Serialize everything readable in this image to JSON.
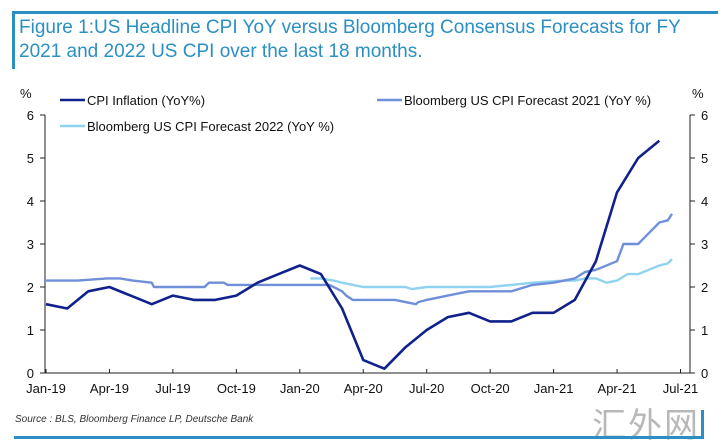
{
  "figure": {
    "title": "Figure 1:US Headline CPI YoY versus Bloomberg Consensus Forecasts for FY 2021 and 2022 US CPI over the last 18 months.",
    "source": "Source : BLS, Bloomberg Finance LP, Deutsche Bank",
    "watermark": "汇外网",
    "accent_color": "#2b8fc4"
  },
  "chart_data": {
    "type": "line",
    "title": "Figure 1:US Headline CPI YoY versus Bloomberg Consensus Forecasts for FY 2021 and 2022 US CPI over the last 18 months.",
    "xlabel": "",
    "ylabel_left": "%",
    "ylabel_right": "%",
    "ylim": [
      0,
      6
    ],
    "yticks": [
      "0",
      "1",
      "2",
      "3",
      "4",
      "5",
      "6"
    ],
    "xticks": [
      "Jan-19",
      "Apr-19",
      "Jul-19",
      "Oct-19",
      "Jan-20",
      "Apr-20",
      "Jul-20",
      "Oct-20",
      "Jan-21",
      "Apr-21",
      "Jul-21"
    ],
    "x_range_months": [
      0,
      30
    ],
    "grid": false,
    "legend": "top",
    "series": [
      {
        "name": "CPI Inflation (YoY%)",
        "color": "#10218b",
        "x_months": [
          0,
          1,
          2,
          3,
          4,
          5,
          6,
          7,
          8,
          9,
          10,
          11,
          12,
          13,
          14,
          15,
          16,
          17,
          18,
          19,
          20,
          21,
          22,
          23,
          24,
          25,
          26,
          27,
          28,
          29
        ],
        "values": [
          1.6,
          1.5,
          1.9,
          2.0,
          1.8,
          1.6,
          1.8,
          1.7,
          1.7,
          1.8,
          2.1,
          2.3,
          2.5,
          2.3,
          1.5,
          0.3,
          0.1,
          0.6,
          1.0,
          1.3,
          1.4,
          1.2,
          1.2,
          1.4,
          1.4,
          1.7,
          2.6,
          4.2,
          5.0,
          5.4
        ]
      },
      {
        "name": "Bloomberg US CPI  Forecast 2021 (YoY %)",
        "color": "#6f8fd8",
        "x_months": [
          0,
          1.5,
          2.9,
          3.5,
          4.1,
          5.0,
          5.1,
          7.5,
          7.7,
          8.4,
          8.6,
          12.0,
          12.3,
          13.0,
          13.4,
          14.0,
          14.2,
          14.5,
          16.5,
          17.0,
          17.5,
          17.6,
          18.0,
          19.0,
          19.5,
          20.0,
          22.0,
          23.0,
          24.0,
          25.0,
          25.5,
          26.0,
          27.0,
          27.3,
          28.0,
          28.2,
          28.8,
          29.0,
          29.4,
          29.6
        ],
        "values": [
          2.15,
          2.15,
          2.2,
          2.2,
          2.15,
          2.1,
          2.0,
          2.0,
          2.1,
          2.1,
          2.05,
          2.05,
          2.05,
          2.05,
          2.05,
          1.9,
          1.8,
          1.7,
          1.7,
          1.65,
          1.6,
          1.65,
          1.7,
          1.8,
          1.85,
          1.9,
          1.9,
          2.05,
          2.1,
          2.2,
          2.35,
          2.4,
          2.6,
          3.0,
          3.0,
          3.1,
          3.4,
          3.5,
          3.55,
          3.7
        ]
      },
      {
        "name": "Bloomberg US CPI  Forecast 2022 (YoY %)",
        "color": "#8fd3f0",
        "x_months": [
          12.5,
          13.0,
          13.6,
          14.0,
          15.0,
          17.0,
          17.3,
          18.0,
          20.0,
          21.0,
          22.0,
          23.0,
          24.5,
          25.0,
          25.5,
          26.0,
          26.5,
          27.0,
          27.5,
          28.0,
          28.5,
          29.0,
          29.4,
          29.6
        ],
        "values": [
          2.2,
          2.2,
          2.15,
          2.1,
          2.0,
          2.0,
          1.95,
          2.0,
          2.0,
          2.0,
          2.05,
          2.1,
          2.15,
          2.15,
          2.2,
          2.2,
          2.1,
          2.15,
          2.3,
          2.3,
          2.4,
          2.5,
          2.55,
          2.65
        ]
      }
    ]
  }
}
